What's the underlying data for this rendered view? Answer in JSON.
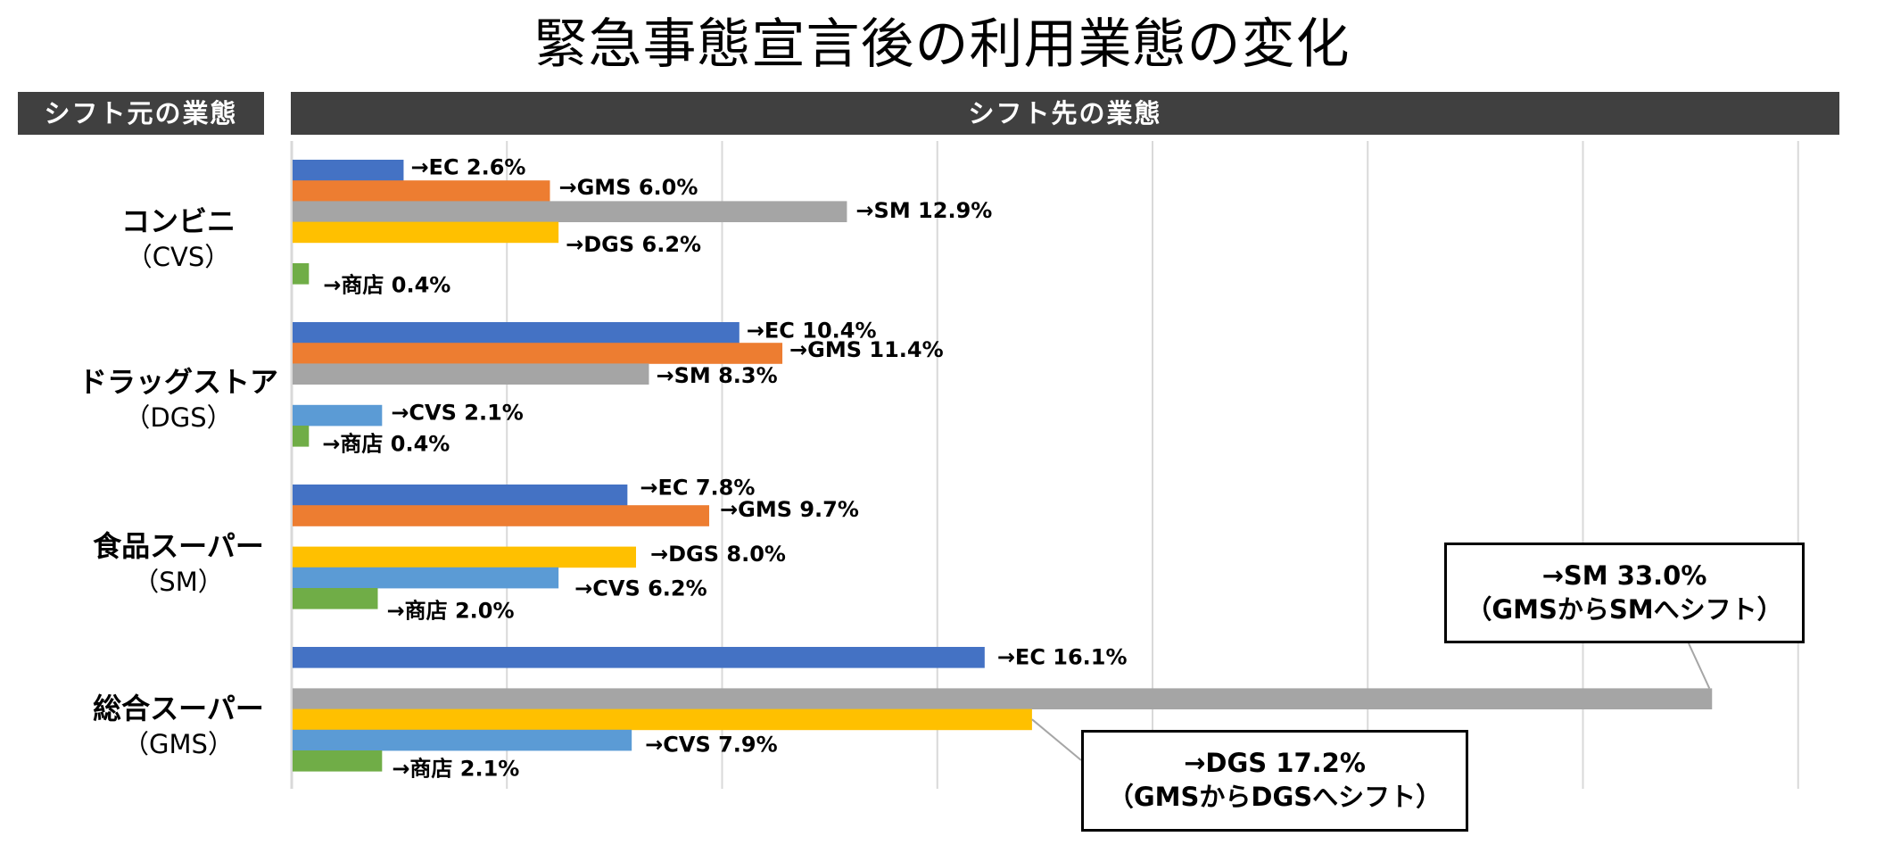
{
  "title": "緊急事態宣言後の利用業態の変化",
  "headers": {
    "source": "シフト元の業態",
    "destination": "シフト先の業態"
  },
  "chart_data": {
    "type": "bar",
    "orientation": "horizontal",
    "title": "緊急事態宣言後の利用業態の変化",
    "xlabel": "シフト先の業態",
    "ylabel": "シフト元の業態",
    "xlim": [
      0,
      35
    ],
    "x_gridlines": [
      0,
      5,
      10,
      15,
      20,
      25,
      30,
      35
    ],
    "grid": true,
    "unit": "%",
    "categories": [
      {
        "line1": "コンビニ",
        "line2": "（CVS）"
      },
      {
        "line1": "ドラッグストア",
        "line2": "（DGS）"
      },
      {
        "line1": "食品スーパー",
        "line2": "（SM）"
      },
      {
        "line1": "総合スーパー",
        "line2": "（GMS）"
      }
    ],
    "series": [
      {
        "name": "EC",
        "color": "#4472C4",
        "values": [
          2.6,
          10.4,
          7.8,
          16.1
        ],
        "labels": [
          "→EC 2.6%",
          "→EC 10.4%",
          "→EC 7.8%",
          "→EC 16.1%"
        ]
      },
      {
        "name": "GMS",
        "color": "#ED7D31",
        "values": [
          6.0,
          11.4,
          9.7,
          null
        ],
        "labels": [
          "→GMS 6.0%",
          "→GMS 11.4%",
          "→GMS 9.7%",
          null
        ]
      },
      {
        "name": "SM",
        "color": "#A5A5A5",
        "values": [
          12.9,
          8.3,
          null,
          33.0
        ],
        "labels": [
          "→SM 12.9%",
          "→SM 8.3%",
          null,
          null
        ]
      },
      {
        "name": "DGS",
        "color": "#FFC000",
        "values": [
          6.2,
          null,
          8.0,
          17.2
        ],
        "labels": [
          "→DGS 6.2%",
          null,
          "→DGS 8.0%",
          null
        ]
      },
      {
        "name": "CVS",
        "color": "#5B9BD5",
        "values": [
          null,
          2.1,
          6.2,
          7.9
        ],
        "labels": [
          null,
          "→CVS 2.1%",
          "→CVS 6.2%",
          "→CVS 7.9%"
        ]
      },
      {
        "name": "商店",
        "color": "#70AD47",
        "values": [
          0.4,
          0.4,
          2.0,
          2.1
        ],
        "labels": [
          "→商店 0.4%",
          "→商店 0.4%",
          "→商店 2.0%",
          "→商店 2.1%"
        ]
      }
    ],
    "annotations": [
      {
        "line1": "→SM 33.0%",
        "line2": "（GMSからSMへシフト）",
        "category": "総合スーパー",
        "series": "SM"
      },
      {
        "line1": "→DGS 17.2%",
        "line2": "（GMSからDGSへシフト）",
        "category": "総合スーパー",
        "series": "DGS"
      }
    ]
  }
}
